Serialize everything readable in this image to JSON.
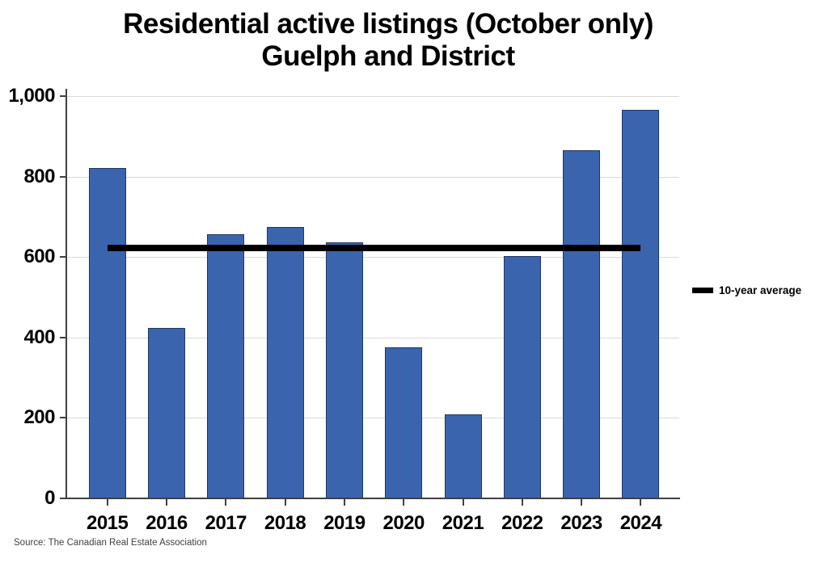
{
  "title": {
    "line1": "Residential active listings (October only)",
    "line2": "Guelph and District"
  },
  "legend": {
    "label": "10-year average"
  },
  "source": "Source: The Canadian Real Estate Association",
  "chart_data": {
    "type": "bar",
    "title": "Residential active listings (October only) Guelph and District",
    "categories": [
      "2015",
      "2016",
      "2017",
      "2018",
      "2019",
      "2020",
      "2021",
      "2022",
      "2023",
      "2024"
    ],
    "series": [
      {
        "name": "Residential active listings",
        "values": [
          822,
          424,
          656,
          675,
          636,
          375,
          209,
          603,
          866,
          966
        ]
      }
    ],
    "average_line": {
      "label": "10-year average",
      "value": 623
    },
    "xlabel": "",
    "ylabel": "",
    "ylim": [
      0,
      1000
    ],
    "yticks": [
      0,
      200,
      400,
      600,
      800,
      1000
    ],
    "ytick_labels": [
      "0",
      "200",
      "400",
      "600",
      "800",
      "1,000"
    ],
    "grid": "horizontal",
    "legend_position": "right",
    "colors": {
      "bar_fill": "#3a64ad",
      "bar_border": "#1f3864",
      "average_line": "#000000",
      "gridline": "#d9d9d9",
      "axis": "#404040",
      "text": "#000000"
    }
  }
}
